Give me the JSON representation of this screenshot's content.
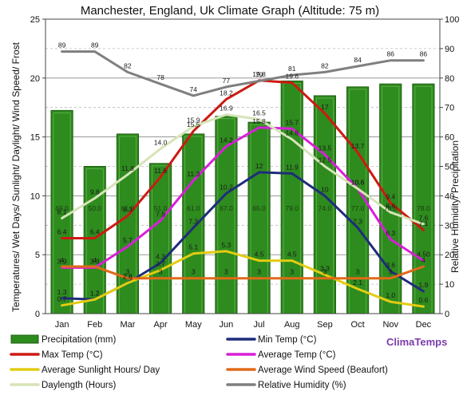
{
  "chart_data": {
    "type": "bar",
    "title": "Manchester, England, Uk Climate Graph (Altitude: 75 m)",
    "ylabel_left": "Temperatures/ Wet Days/ Sunlight/ Daylight/ Wind Speed/ Frost",
    "ylabel_right": "Relative Humidity/ Precipitation",
    "categories": [
      "Jan",
      "Feb",
      "Mar",
      "Apr",
      "May",
      "Jun",
      "Jul",
      "Aug",
      "Sep",
      "Oct",
      "Nov",
      "Dec"
    ],
    "ylim_left": [
      0,
      25
    ],
    "ylim_right": [
      0,
      100
    ],
    "yticks_left": [
      "0",
      "5",
      "10",
      "15",
      "20",
      "25"
    ],
    "yticks_right": [
      "0",
      "10",
      "20",
      "30",
      "40",
      "50",
      "60",
      "70",
      "80",
      "90",
      "100"
    ],
    "grid": true,
    "watermark": "ClimaTemps",
    "series": [
      {
        "name": "Precipitation (mm)",
        "kind": "bar",
        "axis": "right",
        "color": "#2e8b1e",
        "values": [
          69.0,
          50.0,
          61.0,
          51.0,
          61.0,
          67.0,
          65.0,
          79.0,
          74.0,
          77.0,
          78.0,
          78.0
        ],
        "labels": [
          "69.0",
          "50.0",
          "61.0",
          "51.0",
          "61.0",
          "67.0",
          "65.0",
          "79.0",
          "74.0",
          "77.0",
          "78.0",
          "78.0"
        ]
      },
      {
        "name": "Min Temp (°C)",
        "kind": "line",
        "axis": "left",
        "color": "#1f2d7a",
        "values": [
          1.3,
          1.2,
          2.6,
          4.3,
          7.3,
          10.2,
          12,
          11.9,
          10,
          7.3,
          3.6,
          1.9
        ],
        "labels": [
          "1.3",
          "1.2",
          "2.6",
          "4.3",
          "7.3",
          "10.2",
          "12",
          "11.9",
          "10",
          "7.3",
          "3.6",
          "1.9"
        ]
      },
      {
        "name": "Max Temp (°C)",
        "kind": "line",
        "axis": "left",
        "color": "#cc1a12",
        "values": [
          6.4,
          6.4,
          8.3,
          11.6,
          15.5,
          18.2,
          19.8,
          19.6,
          17,
          13.7,
          9.4,
          7.1
        ],
        "labels": [
          "6.4",
          "6.4",
          "8.3",
          "11.6",
          "15.5",
          "18.2",
          "19.8",
          "19.6",
          "17",
          "13.7",
          "9.4",
          "7.1"
        ]
      },
      {
        "name": "Average Temp (°C)",
        "kind": "line",
        "axis": "left",
        "color": "#d81fd8",
        "values": [
          3.9,
          3.9,
          5.7,
          7.9,
          11.3,
          14.2,
          15.8,
          15.7,
          13.5,
          10.6,
          6.3,
          4.5
        ],
        "labels": [
          "3.9",
          "3.9",
          "5.7",
          "7.9",
          "11.3",
          "14.2",
          "15.8",
          "15.7",
          "13.5",
          "10.6",
          "6.3",
          "4.50"
        ]
      },
      {
        "name": "Average Sunlight Hours/ Day",
        "kind": "line",
        "axis": "left",
        "color": "#e3cc12",
        "values": [
          0.7,
          1.2,
          2.6,
          3.7,
          5.1,
          5.3,
          4.5,
          4.5,
          3.3,
          2.1,
          1.0,
          0.6
        ],
        "labels": [
          "0.7",
          "1.2",
          "2.6",
          "3.7",
          "5.1",
          "5.3",
          "4.5",
          "4.5",
          "3.3",
          "2.1",
          "1.0",
          "0.6"
        ]
      },
      {
        "name": "Average Wind Speed (Beaufort)",
        "kind": "line",
        "axis": "left",
        "color": "#e06a18",
        "values": [
          4,
          4,
          3,
          3,
          3,
          3,
          3,
          3,
          3,
          3,
          3,
          4
        ],
        "labels": [
          "4",
          "4",
          "3",
          "3",
          "3",
          "3",
          "3",
          "3",
          "3",
          "3",
          "3",
          "4"
        ]
      },
      {
        "name": "Daylength (Hours)",
        "kind": "line",
        "axis": "left",
        "color": "#d6e4b8",
        "values": [
          8.1,
          9.8,
          11.8,
          14.0,
          15.9,
          16.9,
          16.5,
          14.8,
          12.5,
          10.6,
          8.6,
          7.6
        ],
        "labels": [
          "8.1",
          "9.8",
          "11.8",
          "14.0",
          "15.9",
          "16.9",
          "16.5",
          "14.8",
          "12.5",
          "10.6",
          "8.6",
          "7.6"
        ]
      },
      {
        "name": "Relative Humidity (%)",
        "kind": "line",
        "axis": "right",
        "color": "#7f7f7f",
        "values": [
          89,
          89,
          82,
          78,
          74,
          77,
          79,
          81,
          82,
          84,
          86,
          86
        ],
        "labels": [
          "89",
          "89",
          "82",
          "78",
          "74",
          "77",
          "79",
          "81",
          "82",
          "84",
          "86",
          "86"
        ]
      }
    ]
  }
}
